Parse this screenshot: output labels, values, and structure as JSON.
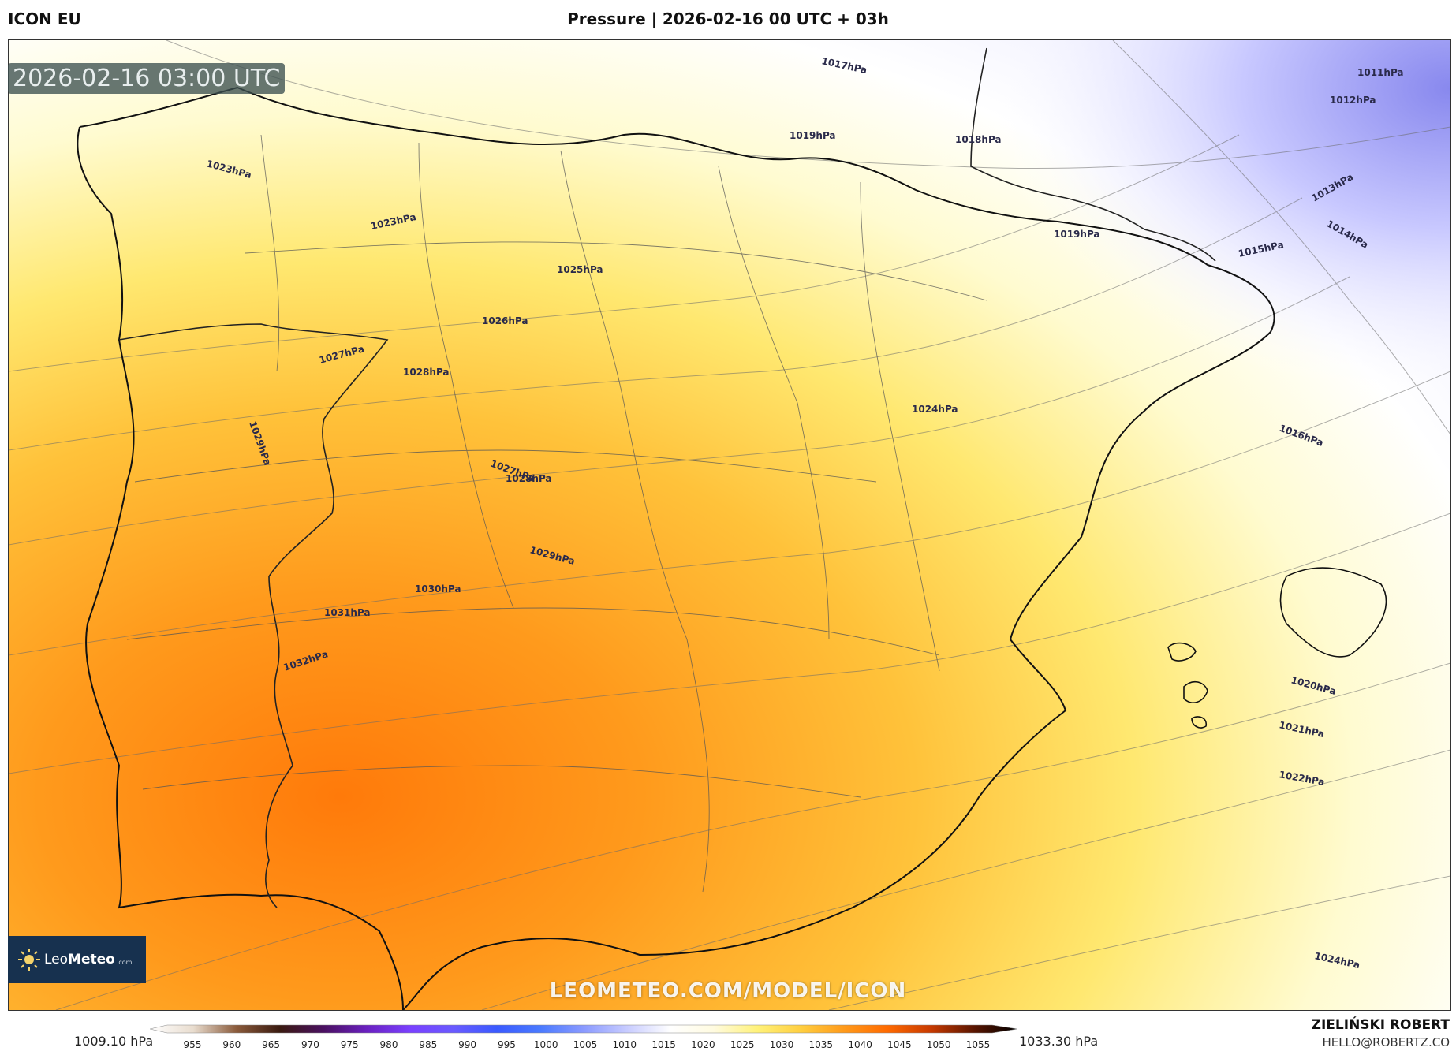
{
  "header": {
    "model": "ICON EU",
    "title": "Pressure | 2026-02-16 00 UTC + 03h"
  },
  "map": {
    "valid_time": "2026-02-16 03:00 UTC",
    "isobar_labels": [
      "1017hPa",
      "1019hPa",
      "1018hPa",
      "1011hPa",
      "1012hPa",
      "1013hPa",
      "1014hPa",
      "1015hPa",
      "1019hPa",
      "1023hPa",
      "1023hPa",
      "1025hPa",
      "1026hPa",
      "1027hPa",
      "1028hPa",
      "1029hPa",
      "1027hPa",
      "1028hPa",
      "1029hPa",
      "1030hPa",
      "1031hPa",
      "1032hPa",
      "1024hPa",
      "1016hPa",
      "1020hPa",
      "1021hPa",
      "1022hPa",
      "1024hPa"
    ],
    "watermark": "LEOMETEO.COM/MODEL/ICON"
  },
  "logo": {
    "brand_a": "Leo",
    "brand_b": "Meteo",
    "suffix": ".com"
  },
  "colorbar": {
    "min_label": "1009.10 hPa",
    "max_label": "1033.30 hPa",
    "ticks": [
      "955",
      "960",
      "965",
      "970",
      "975",
      "980",
      "985",
      "990",
      "995",
      "1000",
      "1005",
      "1010",
      "1015",
      "1020",
      "1025",
      "1030",
      "1035",
      "1040",
      "1045",
      "1050",
      "1055"
    ],
    "stops": [
      "#ffffff",
      "#e9ddcf",
      "#8a5a3a",
      "#3a1a10",
      "#4a1060",
      "#6a20c0",
      "#7a40ff",
      "#6a5aff",
      "#3a5aff",
      "#4a7aff",
      "#8a9aff",
      "#c8ccff",
      "#ffffff",
      "#fffbe0",
      "#fff27a",
      "#ffcf40",
      "#ff9a1a",
      "#ff6a00",
      "#c83a00",
      "#5a1500",
      "#000000"
    ]
  },
  "credits": {
    "author": "ZIELIŃSKI ROBERT",
    "email": "HELLO@ROBERTZ.CO"
  },
  "colors": {
    "high": "#ff8a12",
    "mid": "#fff27a",
    "low": "#9a9cf0",
    "border": "#111111"
  }
}
